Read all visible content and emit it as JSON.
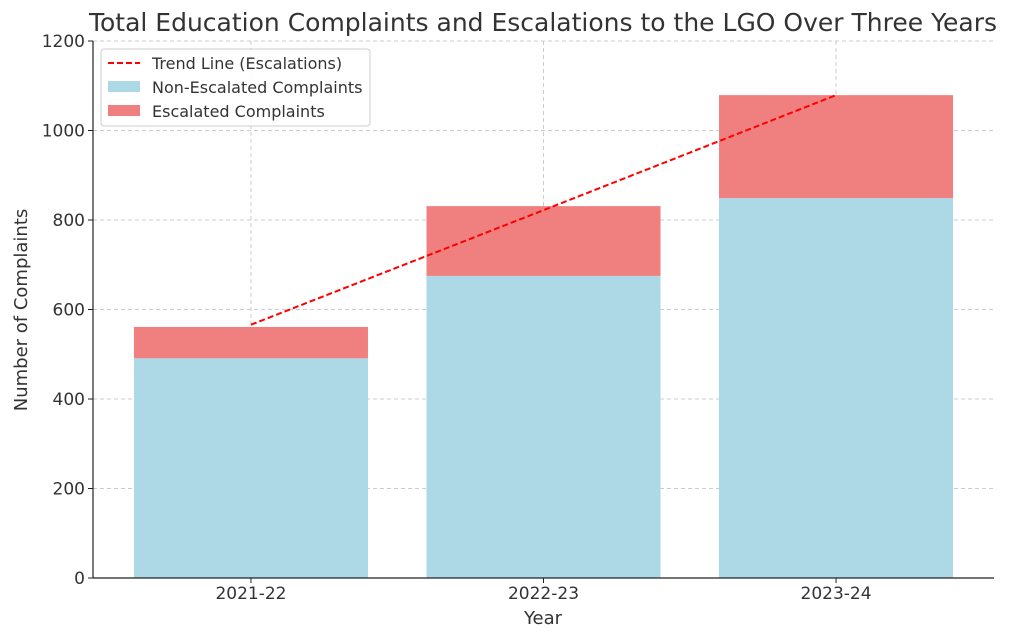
{
  "chart_data": {
    "type": "bar",
    "stacked": true,
    "title": "Total Education Complaints and Escalations to the LGO Over Three Years",
    "xlabel": "Year",
    "ylabel": "Number of Complaints",
    "categories": [
      "2021-22",
      "2022-23",
      "2023-24"
    ],
    "ylim": [
      0,
      1200
    ],
    "yticks": [
      0,
      200,
      400,
      600,
      800,
      1000,
      1200
    ],
    "grid": true,
    "legend_position": "top-left",
    "series": [
      {
        "name": "Non-Escalated Complaints",
        "kind": "bar",
        "color": "#add8e6",
        "values": [
          491,
          675,
          849
        ]
      },
      {
        "name": "Escalated Complaints",
        "kind": "bar",
        "color": "#f08080",
        "values": [
          70,
          156,
          230
        ]
      }
    ],
    "trend": {
      "name": "Trend Line (Escalations)",
      "kind": "line",
      "style": "dashed",
      "color": "#ff0000",
      "values": [
        566,
        822,
        1079
      ]
    }
  }
}
